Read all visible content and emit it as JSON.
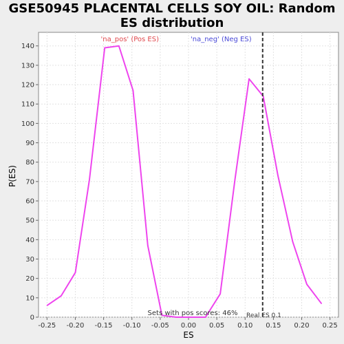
{
  "chart_data": {
    "type": "line",
    "title_line1": "GSE50945 PLACENTAL CELLS SOY OIL: Random",
    "title_line2": "ES distribution",
    "xlabel": "ES",
    "ylabel": "P(ES)",
    "xlim": [
      -0.265,
      0.265
    ],
    "ylim": [
      0,
      147
    ],
    "x_ticks": [
      -0.25,
      -0.2,
      -0.15,
      -0.1,
      -0.05,
      0.0,
      0.05,
      0.1,
      0.15,
      0.2,
      0.25
    ],
    "x_tick_labels": [
      "-0.25",
      "-0.20",
      "-0.15",
      "-0.10",
      "-0.05",
      "0.00",
      "0.05",
      "0.10",
      "0.15",
      "0.20",
      "0.25"
    ],
    "y_ticks": [
      0,
      10,
      20,
      30,
      40,
      50,
      60,
      70,
      80,
      90,
      100,
      110,
      120,
      130,
      140
    ],
    "y_tick_labels": [
      "0",
      "10",
      "20",
      "30",
      "40",
      "50",
      "60",
      "70",
      "80",
      "90",
      "100",
      "110",
      "120",
      "130",
      "140"
    ],
    "grid": true,
    "legend": [
      {
        "label": "'na_pos' (Pos ES)",
        "color": "#e0474c"
      },
      {
        "label": "'na_neg' (Neg ES)",
        "color": "#4a4ad8"
      }
    ],
    "series": [
      {
        "color": "#ee44ee",
        "x": [
          -0.25,
          -0.225,
          -0.2,
          -0.175,
          -0.148,
          -0.123,
          -0.098,
          -0.072,
          -0.047,
          -0.022,
          0.003,
          0.03,
          0.056,
          0.082,
          0.107,
          0.132,
          0.158,
          0.184,
          0.209,
          0.235
        ],
        "y": [
          6,
          11,
          23,
          71,
          139,
          140,
          117,
          37,
          1,
          0,
          0,
          0,
          12,
          71,
          123,
          114,
          73,
          39,
          17,
          7
        ]
      }
    ],
    "real_es": 0.131,
    "annotations": {
      "sets_text": "Sets with pos scores: 46%",
      "real_es_text": "Real ES 0.1"
    }
  }
}
